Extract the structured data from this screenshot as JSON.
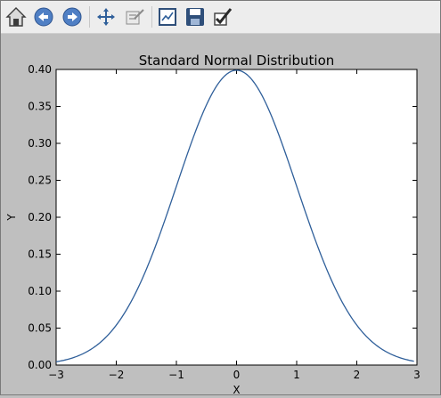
{
  "toolbar": {
    "buttons": [
      {
        "name": "home-icon",
        "label": "Home"
      },
      {
        "name": "back-icon",
        "label": "Back"
      },
      {
        "name": "forward-icon",
        "label": "Forward"
      },
      {
        "name": "pan-icon",
        "label": "Pan"
      },
      {
        "name": "zoom-icon",
        "label": "Zoom"
      },
      {
        "name": "subplots-icon",
        "label": "Configure subplots"
      },
      {
        "name": "save-icon",
        "label": "Save"
      },
      {
        "name": "edit-axis-icon",
        "label": "Edit axis"
      }
    ]
  },
  "colors": {
    "line": "#2f5f9a",
    "figure_bg": "#bfbfbf",
    "axes_bg": "#ffffff",
    "toolbar_bg": "#ededed"
  },
  "chart_data": {
    "type": "line",
    "title": "Standard Normal Distribution",
    "xlabel": "X",
    "ylabel": "Y",
    "xlim": [
      -3,
      3
    ],
    "ylim": [
      0,
      0.4
    ],
    "xticks": [
      -3,
      -2,
      -1,
      0,
      1,
      2,
      3
    ],
    "xtick_labels": [
      "−3",
      "−2",
      "−1",
      "0",
      "1",
      "2",
      "3"
    ],
    "yticks": [
      0,
      0.05,
      0.1,
      0.15,
      0.2,
      0.25,
      0.3,
      0.35,
      0.4
    ],
    "ytick_labels": [
      "0.00",
      "0.05",
      "0.10",
      "0.15",
      "0.20",
      "0.25",
      "0.30",
      "0.35",
      "0.40"
    ],
    "grid": false,
    "series": [
      {
        "x": [
          -3.0,
          -2.75,
          -2.5,
          -2.25,
          -2.0,
          -1.75,
          -1.5,
          -1.25,
          -1.0,
          -0.75,
          -0.5,
          -0.25,
          0.0,
          0.25,
          0.5,
          0.75,
          1.0,
          1.25,
          1.5,
          1.75,
          2.0,
          2.25,
          2.5,
          2.75,
          2.95
        ],
        "y": [
          0.0044,
          0.0091,
          0.0175,
          0.0317,
          0.054,
          0.0863,
          0.1295,
          0.1826,
          0.242,
          0.3011,
          0.3521,
          0.3867,
          0.3989,
          0.3867,
          0.3521,
          0.3011,
          0.242,
          0.1826,
          0.1295,
          0.0863,
          0.054,
          0.0317,
          0.0175,
          0.0091,
          0.0051
        ]
      }
    ]
  }
}
